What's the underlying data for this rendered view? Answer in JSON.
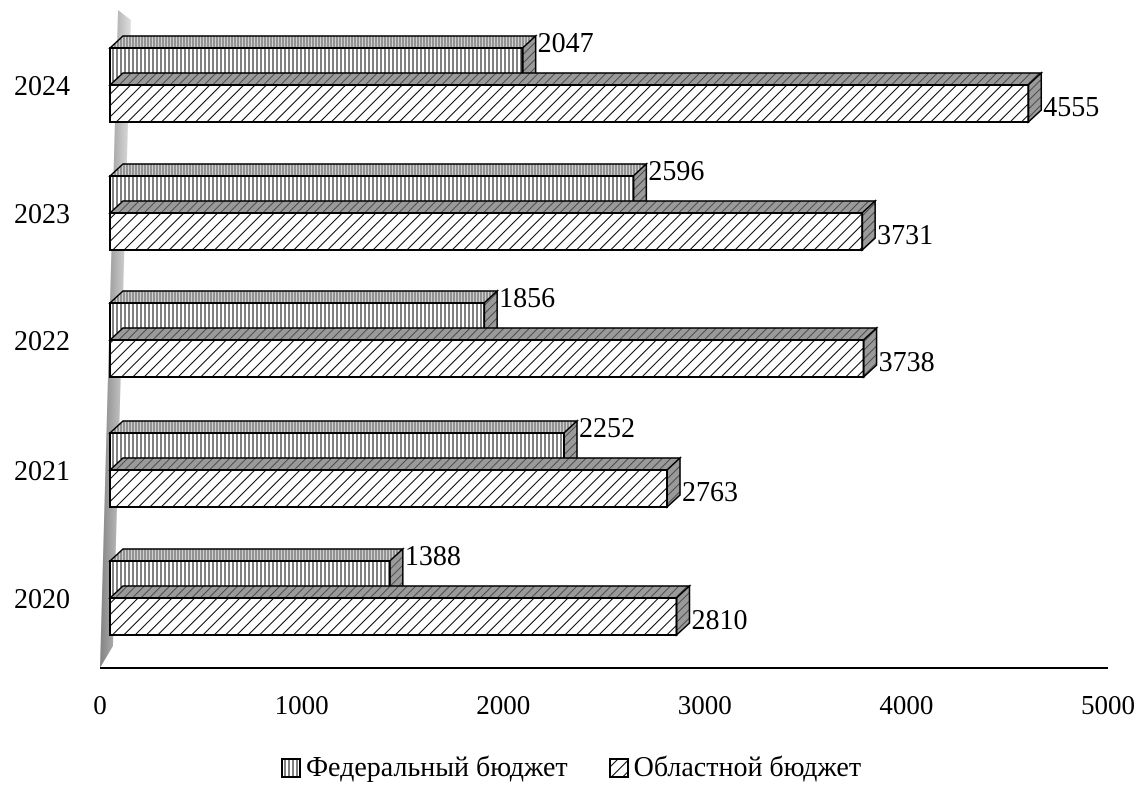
{
  "chart_data": {
    "type": "bar",
    "orientation": "horizontal",
    "categories": [
      "2020",
      "2021",
      "2022",
      "2023",
      "2024"
    ],
    "series": [
      {
        "name": "Федеральный бюджет",
        "values": [
          1388,
          2252,
          1856,
          2596,
          2047
        ],
        "pattern": "vertical-lines"
      },
      {
        "name": "Областной бюджет",
        "values": [
          2810,
          2763,
          3738,
          3731,
          4555
        ],
        "pattern": "diagonal-lines"
      }
    ],
    "xlim": [
      0,
      5000
    ],
    "xticks": [
      "0",
      "1000",
      "2000",
      "3000",
      "4000",
      "5000"
    ],
    "title": "",
    "xlabel": "",
    "ylabel": "",
    "legend_position": "bottom",
    "grid": false,
    "style": "3d-bars",
    "colors": {
      "text": "#000000",
      "bar_face": "#ffffff",
      "stroke": "#000000",
      "depth_face": "#9a9a9a"
    }
  }
}
